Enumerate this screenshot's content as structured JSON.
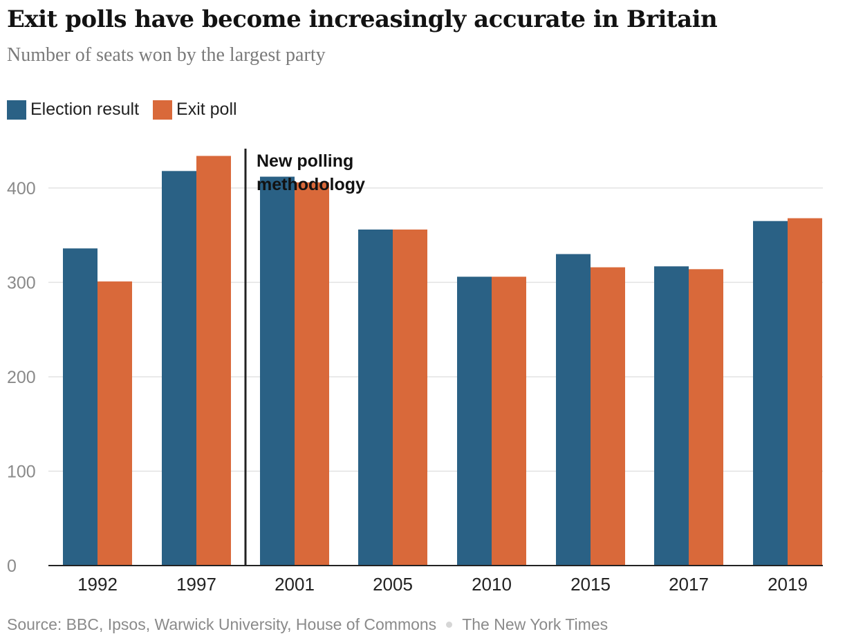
{
  "title": "Exit polls have become increasingly accurate in Britain",
  "subtitle": "Number of seats won by the largest party",
  "legend": [
    {
      "label": "Election result",
      "color": "#2a6185"
    },
    {
      "label": "Exit poll",
      "color": "#d9693a"
    }
  ],
  "annotation": {
    "line1": "New polling",
    "line2": "methodology"
  },
  "source": {
    "text": "Source: BBC, Ipsos, Warwick University, House of Commons",
    "publisher": "The New York Times"
  },
  "colors": {
    "grid": "#e2e2e2",
    "axis": "#222222",
    "tick_text": "#8a8a8a",
    "category_text": "#222222"
  },
  "chart_data": {
    "type": "bar",
    "categories": [
      "1992",
      "1997",
      "2001",
      "2005",
      "2010",
      "2015",
      "2017",
      "2019"
    ],
    "series": [
      {
        "name": "Election result",
        "color": "#2a6185",
        "values": [
          336,
          418,
          412,
          356,
          306,
          330,
          317,
          365
        ]
      },
      {
        "name": "Exit poll",
        "color": "#d9693a",
        "values": [
          301,
          434,
          406,
          356,
          306,
          316,
          314,
          368
        ]
      }
    ],
    "ylim": [
      0,
      460
    ],
    "yticks": [
      0,
      100,
      200,
      300,
      400
    ],
    "grid": true,
    "legend_position": "top-left",
    "annotation_after_category": "1997"
  }
}
